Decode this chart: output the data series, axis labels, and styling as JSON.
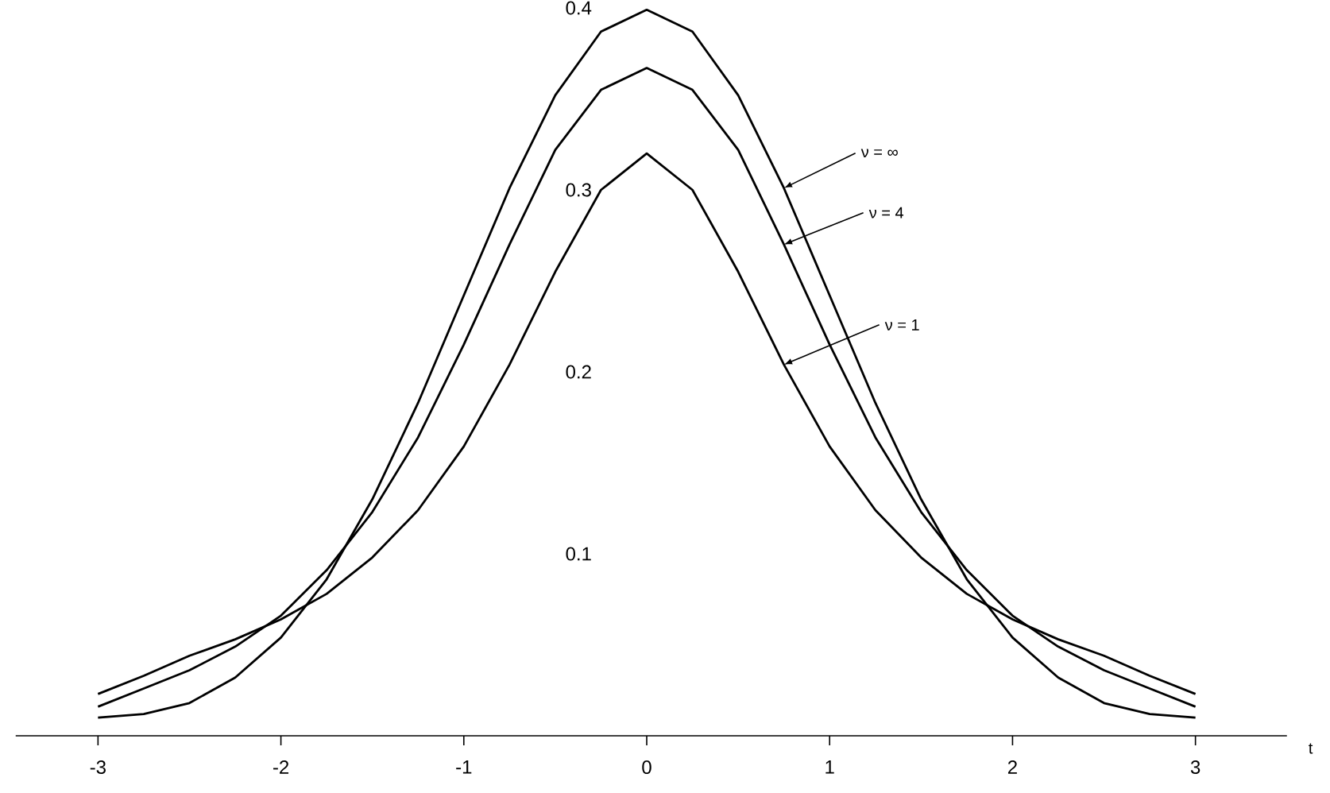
{
  "chart_data": {
    "type": "line",
    "xlabel": "t",
    "xlim": [
      -3.45,
      3.5
    ],
    "ylim": [
      0,
      0.4
    ],
    "xticks": [
      -3,
      -2,
      -1,
      0,
      1,
      2,
      3
    ],
    "yticks": [
      0.1,
      0.2,
      0.3,
      0.4
    ],
    "marker": "none",
    "line_style": "solid",
    "x": [
      -3,
      -2.75,
      -2.5,
      -2.25,
      -2,
      -1.75,
      -1.5,
      -1.25,
      -1,
      -0.75,
      -0.5,
      -0.25,
      0,
      0.25,
      0.5,
      0.75,
      1,
      1.25,
      1.5,
      1.75,
      2,
      2.25,
      2.5,
      2.75,
      3
    ],
    "series": [
      {
        "name": "ν = ∞",
        "color": "#000000",
        "values": [
          0.01,
          0.012,
          0.018,
          0.032,
          0.054,
          0.086,
          0.13,
          0.183,
          0.242,
          0.301,
          0.352,
          0.387,
          0.399,
          0.387,
          0.352,
          0.301,
          0.242,
          0.183,
          0.13,
          0.086,
          0.054,
          0.032,
          0.018,
          0.012,
          0.01
        ]
      },
      {
        "name": "ν = 4",
        "color": "#000000",
        "values": [
          0.016,
          0.026,
          0.036,
          0.049,
          0.066,
          0.091,
          0.123,
          0.164,
          0.215,
          0.27,
          0.322,
          0.355,
          0.367,
          0.355,
          0.322,
          0.27,
          0.215,
          0.164,
          0.123,
          0.091,
          0.066,
          0.049,
          0.036,
          0.026,
          0.016
        ]
      },
      {
        "name": "ν = 1",
        "color": "#000000",
        "values": [
          0.023,
          0.033,
          0.044,
          0.053,
          0.064,
          0.078,
          0.098,
          0.124,
          0.159,
          0.204,
          0.255,
          0.3,
          0.32,
          0.3,
          0.255,
          0.204,
          0.159,
          0.124,
          0.098,
          0.078,
          0.064,
          0.053,
          0.044,
          0.033,
          0.023
        ]
      }
    ]
  }
}
